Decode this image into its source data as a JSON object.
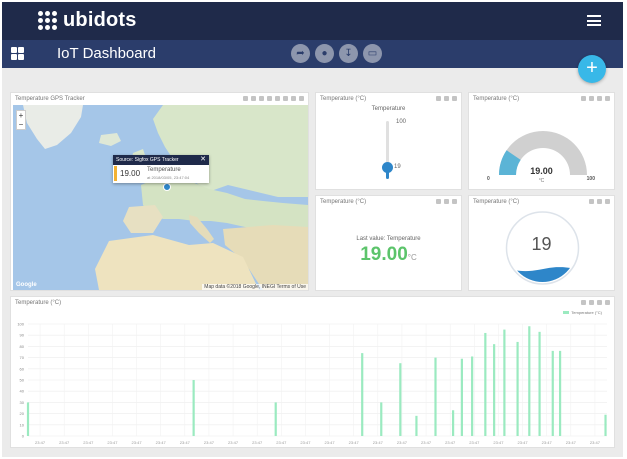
{
  "app": {
    "logo_text": "ubidots",
    "dashboard_title": "IoT Dashboard",
    "add_button_label": "+",
    "toolbar_icons": [
      "share-icon",
      "lock-icon",
      "download-icon",
      "monitor-icon"
    ]
  },
  "colors": {
    "topbar": "#1f2a4a",
    "subbar": "#2b3d6b",
    "accent": "#38b8e8",
    "metric_green": "#5cc46b",
    "bar_green": "#9beac0",
    "gauge_fill": "#5bb4d6",
    "tank_water": "#2e86c9"
  },
  "map_widget": {
    "title": "Temperature GPS Tracker",
    "popup_source": "Source: Sigfox GPS Tracker",
    "popup_close": "✕",
    "popup_value": "19.00",
    "popup_variable": "Temperature",
    "popup_timestamp": "at 2018/03/05, 23:47:04",
    "zoom_in": "+",
    "zoom_out": "−",
    "attribution": "Map data ©2018 Google, INEGI   Terms of Use",
    "google_logo": "Google"
  },
  "slider_widget": {
    "title": "Temperature (°C)",
    "label": "Temperature",
    "max_label": "100",
    "value_label": "19",
    "value": 19,
    "min": 0,
    "max": 100
  },
  "gauge_widget": {
    "title": "Temperature (°C)",
    "value_label": "19.00",
    "unit": "°C",
    "min_label": "0",
    "max_label": "100",
    "value": 19,
    "min": 0,
    "max": 100
  },
  "metric_widget": {
    "title": "Temperature (°C)",
    "label": "Last value: Temperature",
    "value": "19.00",
    "unit": "°C"
  },
  "tank_widget": {
    "title": "Temperature (°C)",
    "value_label": "19",
    "fill_fraction": 0.19
  },
  "chart_widget": {
    "title": "Temperature (°C)",
    "legend_label": "Temperature (°C)"
  },
  "chart_data": {
    "type": "bar",
    "title": "Temperature (°C)",
    "series": [
      {
        "name": "Temperature (°C)",
        "values": [
          30,
          0,
          0,
          0,
          0,
          0,
          0,
          0,
          0,
          0,
          0,
          0,
          0,
          0,
          0,
          0,
          0,
          0,
          0,
          0,
          0,
          0,
          0,
          0,
          0,
          0,
          0,
          0,
          0,
          0,
          0,
          0,
          0,
          0,
          0,
          0,
          0,
          0,
          0,
          0,
          0,
          0,
          0,
          0,
          0,
          0,
          0,
          0,
          0,
          0,
          0,
          0,
          0,
          0,
          0,
          0,
          0,
          0,
          0,
          0,
          0,
          0,
          0,
          0,
          0,
          0,
          0,
          0,
          0,
          0,
          0,
          0,
          0,
          0,
          0,
          0,
          0,
          0,
          0,
          0,
          0,
          0,
          0,
          0,
          0,
          0,
          0,
          0,
          0,
          0,
          0,
          0,
          0,
          0,
          0,
          0,
          0,
          0,
          0,
          0,
          0,
          0,
          0,
          0,
          0,
          0,
          0,
          0,
          0,
          0,
          0,
          0,
          0,
          50,
          0,
          0,
          0,
          0,
          0,
          0,
          0,
          0,
          0,
          0,
          0,
          0,
          0,
          0,
          0,
          0,
          0,
          0,
          0,
          0,
          0,
          0,
          0,
          0,
          0,
          0,
          0,
          0,
          0,
          0,
          0,
          0,
          0,
          0,
          0,
          0,
          0,
          0,
          0,
          0,
          0,
          0,
          0,
          0,
          0,
          0,
          0,
          0,
          0,
          0,
          0,
          0,
          0,
          0,
          0,
          30,
          0,
          0,
          0,
          0,
          0,
          0,
          0,
          0,
          0,
          0,
          0,
          0,
          0,
          0,
          0,
          0,
          0,
          0,
          0,
          0,
          0,
          0,
          0,
          0,
          0,
          0,
          0,
          0,
          0,
          0,
          0,
          0,
          0,
          0,
          0,
          0,
          0,
          0,
          0,
          0,
          0,
          0,
          0,
          0,
          0,
          0,
          0,
          0,
          0,
          0,
          0,
          0,
          0,
          0,
          0,
          0,
          0,
          0,
          74,
          0,
          0,
          0,
          0,
          0,
          0,
          0,
          0,
          0,
          0,
          0,
          0,
          30,
          0,
          0,
          0,
          0,
          0,
          0,
          0,
          0,
          0,
          0,
          0,
          0,
          65,
          0,
          0,
          0,
          0,
          0,
          0,
          0,
          0,
          0,
          0,
          18,
          0,
          0,
          0,
          0,
          0,
          0,
          0,
          0,
          0,
          0,
          0,
          0,
          70,
          0,
          0,
          0,
          0,
          0,
          0,
          0,
          0,
          0,
          0,
          0,
          23,
          0,
          0,
          0,
          0,
          0,
          69,
          0,
          0,
          0,
          0,
          0,
          0,
          71,
          0,
          0,
          0,
          0,
          0,
          0,
          0,
          0,
          92,
          0,
          0,
          0,
          0,
          0,
          82,
          0,
          0,
          0,
          0,
          0,
          0,
          95,
          0,
          0,
          0,
          0,
          0,
          0,
          0,
          0,
          84,
          0,
          0,
          0,
          0,
          0,
          0,
          0,
          98,
          0,
          0,
          0,
          0,
          0,
          0,
          93,
          0,
          0,
          0,
          0,
          0,
          0,
          0,
          0,
          76,
          0,
          0,
          0,
          0,
          76,
          0,
          0,
          0,
          0,
          0,
          0,
          0,
          0,
          0,
          0,
          0,
          0,
          0,
          0,
          0,
          0,
          0,
          0,
          0,
          0,
          0,
          0,
          0,
          0,
          0,
          0,
          0,
          0,
          0,
          0,
          19
        ]
      }
    ],
    "ylim": [
      0,
      100
    ],
    "yticks": [
      0,
      10,
      20,
      30,
      40,
      50,
      60,
      70,
      80,
      90,
      100
    ],
    "x_tick_labels": [
      "23:47",
      "23:47",
      "23:47",
      "23:47",
      "23:47",
      "23:47",
      "23:47",
      "23:47",
      "23:47",
      "23:47",
      "23:47",
      "23:47",
      "23:47",
      "23:47",
      "23:47",
      "23:47",
      "23:47",
      "23:47",
      "23:47",
      "23:47",
      "23:47",
      "23:47",
      "23:47",
      "23:47"
    ],
    "grid": true,
    "legend_position": "top-right"
  }
}
